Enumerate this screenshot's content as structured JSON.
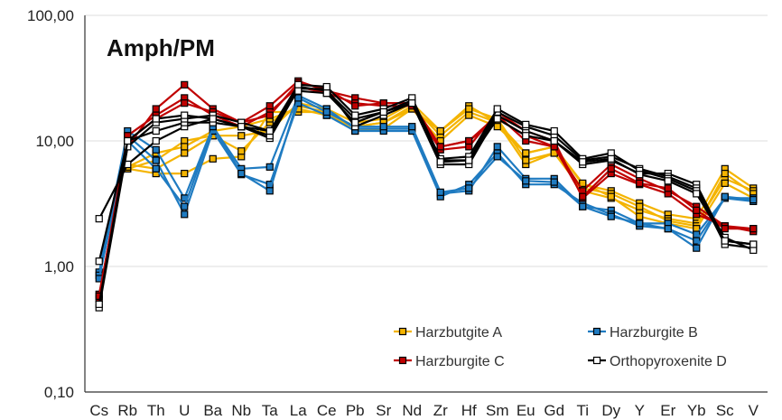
{
  "chart_data": {
    "type": "line",
    "title": "Amph/PM",
    "y_scale": "log",
    "ylim": [
      0.1,
      100
    ],
    "y_ticks": [
      "0,10",
      "1,00",
      "10,00",
      "100,00"
    ],
    "grid": "horizontal",
    "legend_position": "bottom-right",
    "categories": [
      "Cs",
      "Rb",
      "Th",
      "U",
      "Ba",
      "Nb",
      "Ta",
      "La",
      "Ce",
      "Pb",
      "Sr",
      "Nd",
      "Zr",
      "Hf",
      "Sm",
      "Eu",
      "Gd",
      "Ti",
      "Dy",
      "Y",
      "Er",
      "Yb",
      "Sc",
      "V"
    ],
    "series": [
      {
        "name": "Harzbutgite A",
        "color": "#f4b400",
        "marker_fill": "#f4b400",
        "samples": [
          [
            null,
            6,
            5.5,
            5.5,
            7.2,
            7.5,
            17,
            17,
            17,
            12,
            12.5,
            18,
            12,
            19,
            14,
            8,
            9,
            4.5,
            4,
            3.2,
            2.6,
            2.4,
            6,
            4.2
          ],
          [
            null,
            6.5,
            6,
            8,
            11,
            8.3,
            14,
            19,
            17,
            13,
            14,
            19,
            11,
            17,
            14,
            6.5,
            8,
            4,
            3.5,
            2.8,
            2.4,
            2.2,
            5,
            4
          ],
          [
            null,
            6,
            7,
            10,
            11,
            11,
            12,
            20,
            18,
            14,
            15,
            20,
            12,
            18,
            15,
            7,
            8,
            4.2,
            3.8,
            3,
            2.3,
            2.1,
            5.5,
            3.8
          ],
          [
            null,
            6.2,
            8,
            9,
            12,
            13,
            15,
            18,
            16,
            13,
            14,
            18,
            10,
            16,
            13,
            8,
            9,
            4.6,
            3.6,
            2.5,
            2.2,
            2,
            4.6,
            3.5
          ]
        ]
      },
      {
        "name": "Harzburgite B",
        "color": "#1f7bc1",
        "marker_fill": "#1f7bc1",
        "samples": [
          [
            0.9,
            12,
            8.5,
            3.5,
            13,
            6,
            6.2,
            23,
            18,
            12.5,
            12.5,
            12.5,
            3.8,
            4,
            9,
            5,
            5,
            3,
            2.8,
            2.2,
            2.2,
            1.8,
            3.5,
            3.3
          ],
          [
            0.85,
            11,
            7,
            2.6,
            12,
            5.4,
            4.5,
            20,
            16,
            12,
            12,
            12,
            3.6,
            4.5,
            8,
            4.5,
            4.5,
            3.2,
            2.6,
            2.1,
            2,
            1.6,
            3.5,
            3.5
          ],
          [
            0.8,
            10,
            6,
            3,
            13,
            5.5,
            4,
            22,
            17,
            13,
            13,
            13,
            3.9,
            4.2,
            7.5,
            4.8,
            4.7,
            3,
            2.5,
            2.2,
            2,
            1.4,
            3.6,
            3.4
          ]
        ]
      },
      {
        "name": "Harzburgite C",
        "color": "#c00000",
        "marker_fill": "#c00000",
        "samples": [
          [
            0.6,
            9,
            18,
            28,
            18,
            14,
            19,
            30,
            25,
            22,
            20,
            20,
            9,
            10,
            15,
            11,
            9,
            4,
            6.5,
            5,
            4,
            3,
            2.1,
            2
          ],
          [
            0.55,
            11,
            16,
            22,
            16,
            13,
            17,
            27,
            24,
            20,
            19,
            19,
            8.5,
            9,
            17,
            12,
            10,
            3.5,
            5.5,
            4.5,
            3.8,
            2.6,
            2.1,
            1.9
          ],
          [
            0.58,
            10,
            15,
            20,
            17,
            14,
            16,
            29,
            26,
            19,
            20,
            20,
            9,
            10,
            16,
            10,
            9,
            3.6,
            6,
            4.6,
            4.2,
            2.8,
            2,
            2
          ]
        ]
      },
      {
        "name": "Orthopyroxenite D",
        "color": "#000000",
        "marker_fill": "#ffffff",
        "samples": [
          [
            2.4,
            6.5,
            10,
            13,
            15,
            13,
            10.5,
            26,
            26,
            13,
            16,
            20,
            6.5,
            6.5,
            16,
            12,
            10,
            6.5,
            7,
            5.5,
            5.5,
            4.5,
            1.6,
            1.5
          ],
          [
            1.1,
            10,
            12,
            14,
            14,
            13,
            11,
            27,
            25,
            15,
            17,
            21,
            7,
            7,
            17,
            13,
            11,
            7,
            7.5,
            6,
            5.2,
            4.2,
            1.5,
            1.4
          ],
          [
            0.47,
            9,
            14,
            15,
            16,
            14,
            12,
            28,
            27,
            16,
            18,
            22,
            7.2,
            7.5,
            18,
            13.5,
            12,
            7.2,
            8,
            5.8,
            5,
            4,
            1.7,
            1.35
          ],
          [
            0.5,
            10,
            15,
            16,
            15,
            13,
            12,
            25,
            24,
            14,
            17,
            20,
            6.8,
            7,
            15,
            11,
            10,
            6.8,
            7.2,
            5.4,
            4.8,
            3.8,
            1.6,
            1.5
          ]
        ]
      }
    ]
  }
}
